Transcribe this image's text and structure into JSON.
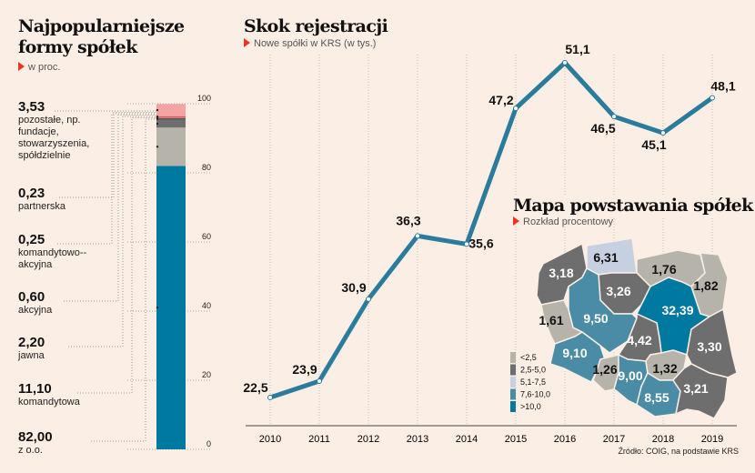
{
  "left": {
    "title": "Najpopularniejsze formy spółek",
    "subtitle": "w proc.",
    "items": [
      {
        "value": "3,53",
        "label": "pozostałe, np. fundacje, stowarzyszenia, spółdzielnie",
        "pct": 3.53,
        "color": "#f4a3a3"
      },
      {
        "value": "0,23",
        "label": "partnerska",
        "pct": 0.23,
        "color": "#e03030"
      },
      {
        "value": "0,25",
        "label": "komandytowo--akcyjna",
        "pct": 0.25,
        "color": "#f4a3a3"
      },
      {
        "value": "0,60",
        "label": "akcyjna",
        "pct": 0.6,
        "color": "#555555"
      },
      {
        "value": "2,20",
        "label": "jawna",
        "pct": 2.2,
        "color": "#6e6e6e"
      },
      {
        "value": "11,10",
        "label": "komandytowa",
        "pct": 11.1,
        "color": "#b6b3aa"
      },
      {
        "value": "82,00",
        "label": "z o.o.",
        "pct": 82.0,
        "color": "#0079a1"
      }
    ],
    "axis_ticks": [
      "0",
      "20",
      "40",
      "60",
      "80",
      "100"
    ]
  },
  "chart_data": {
    "type": "line",
    "title": "Skok rejestracji",
    "subtitle": "Nowe spółki w KRS (w tys.)",
    "x": [
      "2010",
      "2011",
      "2012",
      "2013",
      "2014",
      "2015",
      "2016",
      "2017",
      "2018",
      "2019"
    ],
    "values": [
      22.5,
      23.9,
      30.9,
      36.3,
      35.6,
      47.2,
      51.1,
      46.5,
      45.1,
      48.1
    ],
    "labels": [
      "22,5",
      "23,9",
      "30,9",
      "36,3",
      "35,6",
      "47,2",
      "51,1",
      "46,5",
      "45,1",
      "48,1"
    ],
    "color": "#2b7c9c"
  },
  "map": {
    "title": "Mapa powstawania spółek",
    "subtitle": "Rozkład procentowy",
    "legend": [
      {
        "label": "<2,5",
        "color": "#b6b3aa"
      },
      {
        "label": "2,5-5,0",
        "color": "#6e6e6e"
      },
      {
        "label": "5,1-7,5",
        "color": "#c6d0e0"
      },
      {
        "label": "7,6-10,0",
        "color": "#4a8ca5"
      },
      {
        "label": ">10,0",
        "color": "#0079a1"
      }
    ],
    "regions": [
      {
        "value": "3,18",
        "cls": 1
      },
      {
        "value": "6,31",
        "cls": 2
      },
      {
        "value": "1,76",
        "cls": 0
      },
      {
        "value": "1,82",
        "cls": 0
      },
      {
        "value": "3,26",
        "cls": 1
      },
      {
        "value": "32,39",
        "cls": 4
      },
      {
        "value": "1,61",
        "cls": 0
      },
      {
        "value": "9,50",
        "cls": 3
      },
      {
        "value": "4,42",
        "cls": 1
      },
      {
        "value": "3,30",
        "cls": 1
      },
      {
        "value": "9,10",
        "cls": 3
      },
      {
        "value": "1,26",
        "cls": 0
      },
      {
        "value": "9,00",
        "cls": 3
      },
      {
        "value": "1,32",
        "cls": 0
      },
      {
        "value": "8,55",
        "cls": 3
      },
      {
        "value": "3,21",
        "cls": 1
      }
    ]
  },
  "source": "Źródło: COIG, na podstawie KRS"
}
